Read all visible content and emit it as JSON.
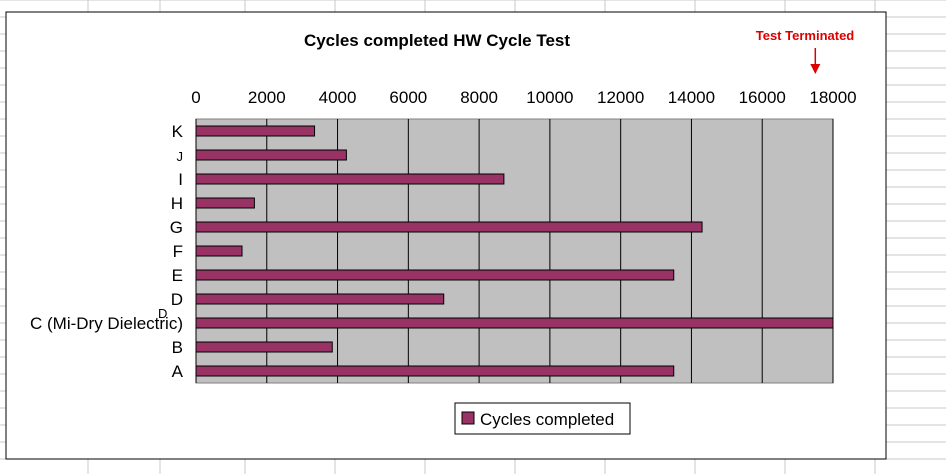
{
  "chart_data": {
    "type": "bar",
    "orientation": "horizontal",
    "title": "Cycles completed HW Cycle Test",
    "categories": [
      "K",
      "J",
      "I",
      "H",
      "G",
      "F",
      "E",
      "D",
      "C (Mi-Dry Dielectric)",
      "B",
      "A"
    ],
    "series": [
      {
        "name": "Cycles completed",
        "color": "#993366",
        "values": [
          3350,
          4250,
          8700,
          1650,
          14300,
          1300,
          13500,
          7000,
          18000,
          3850,
          13500
        ]
      }
    ],
    "xlim": [
      0,
      18000
    ],
    "xticks": [
      "0",
      "2000",
      "4000",
      "6000",
      "8000",
      "10000",
      "12000",
      "14000",
      "16000",
      "18000"
    ],
    "x_axis_position": "top",
    "grid": true,
    "plot_background": "#c0c0c0",
    "legend_position": "bottom",
    "annotation": {
      "text": "Test Terminated",
      "x": 17500,
      "color": "#dd0000"
    },
    "stray_text": "D"
  }
}
